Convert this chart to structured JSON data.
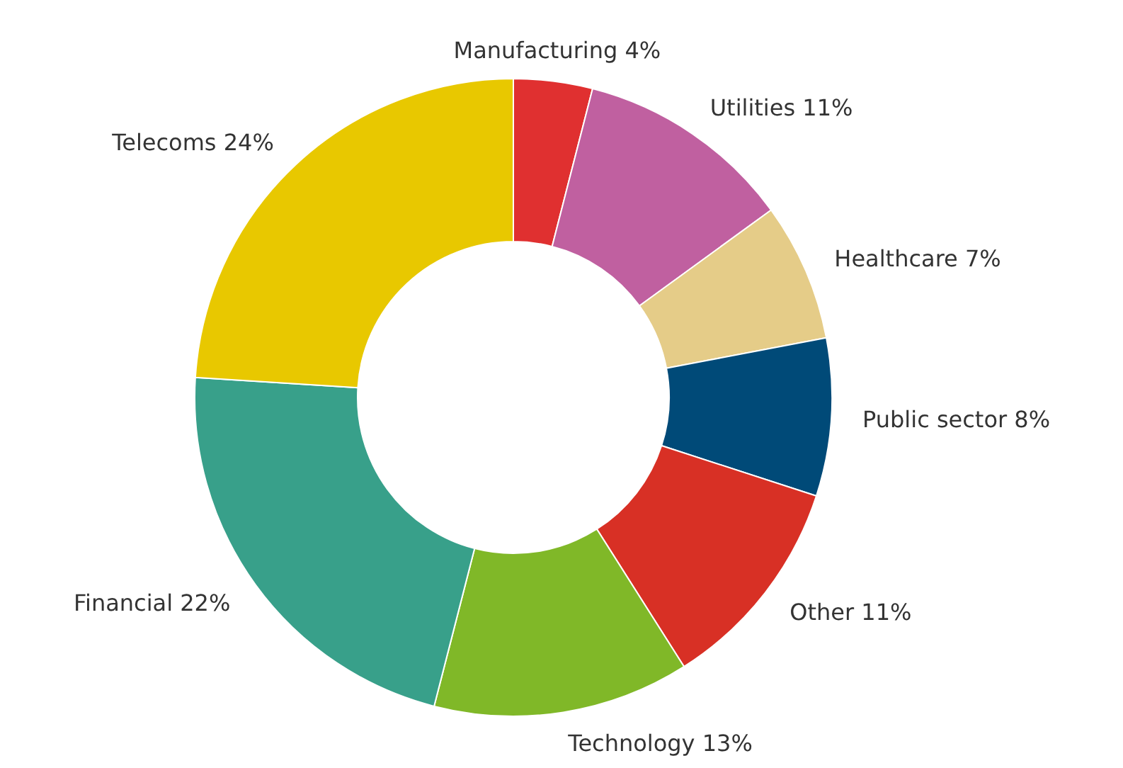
{
  "chart_data": {
    "type": "donut",
    "categories": [
      "Manufacturing",
      "Utilities",
      "Healthcare",
      "Public sector",
      "Other",
      "Technology",
      "Financial",
      "Telecoms"
    ],
    "values": [
      4,
      11,
      7,
      8,
      11,
      13,
      22,
      24
    ],
    "value_labels": [
      "4%",
      "11%",
      "7%",
      "8%",
      "11%",
      "13%",
      "22%",
      "24%"
    ],
    "colors": [
      "#e03030",
      "#c060a0",
      "#e5cc88",
      "#004a78",
      "#d83025",
      "#80b828",
      "#38a08a",
      "#e8c800"
    ],
    "legend": false
  }
}
